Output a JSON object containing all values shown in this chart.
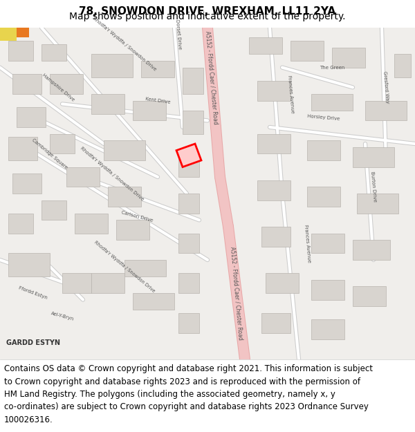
{
  "title_line1": "78, SNOWDON DRIVE, WREXHAM, LL11 2YA",
  "title_line2": "Map shows position and indicative extent of the property.",
  "footer_lines": [
    "Contains OS data © Crown copyright and database right 2021. This information is subject",
    "to Crown copyright and database rights 2023 and is reproduced with the permission of",
    "HM Land Registry. The polygons (including the associated geometry, namely x, y",
    "co-ordinates) are subject to Crown copyright and database rights 2023 Ordnance Survey",
    "100026316."
  ],
  "title_fontsize": 11,
  "subtitle_fontsize": 10,
  "footer_fontsize": 8.5,
  "map_bg_color": "#f0eeeb",
  "road_main_color": "#f2c4c4",
  "road_main_border": "#e8a8a8",
  "road_minor_color": "#ffffff",
  "road_minor_border": "#cccccc",
  "building_color": "#d8d4cf",
  "building_border": "#b8b4af",
  "highlight_color": "#ff0000",
  "highlight_fill": "#ffcccc",
  "text_color": "#333333",
  "label_color": "#555555",
  "header_bg": "#ffffff",
  "footer_bg": "#ffffff",
  "fig_width": 6.0,
  "fig_height": 6.25,
  "dpi": 100
}
